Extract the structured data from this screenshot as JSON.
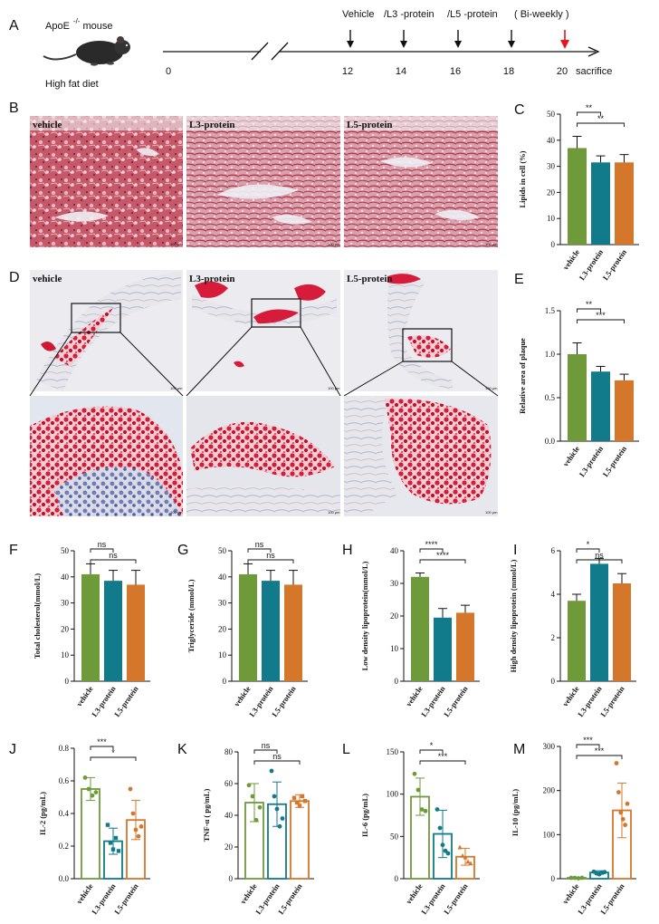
{
  "colors": {
    "vehicle": "#6f9a3a",
    "l3": "#117a8b",
    "l5": "#d4772a",
    "arrow_red": "#e8141c"
  },
  "panel_a": {
    "letter": "A",
    "mouse_label_prefix": "ApoE",
    "mouse_label_sup": "-/-",
    "mouse_label_suffix": "mouse",
    "diet": "High fat diet",
    "legend_vehicle": "Vehicle",
    "legend_l3": "/L3 -protein",
    "legend_l5": "/L5 -protein",
    "legend_schedule": "( Bi-weekly )",
    "ticks": [
      "0",
      "12",
      "14",
      "16",
      "18",
      "20"
    ],
    "end_label": "sacrifice"
  },
  "panel_b": {
    "letter": "B",
    "labels": [
      "vehicle",
      "L3-protein",
      "L5-protein"
    ],
    "scale": "100 μm"
  },
  "panel_d": {
    "letter": "D",
    "labels": [
      "vehicle",
      "L3-protein",
      "L5-protein"
    ],
    "scale": "100 μm"
  },
  "categories": [
    "vehicle",
    "L3-protein",
    "L5-protein"
  ],
  "chart_data": [
    {
      "id": "C",
      "letter": "C",
      "type": "bar",
      "ylabel": "Lipids in cell  (%)",
      "ylim": [
        0,
        50
      ],
      "yticks": [
        "0",
        "10",
        "20",
        "30",
        "40",
        "50"
      ],
      "ytick_values": [
        0,
        10,
        20,
        30,
        40,
        50
      ],
      "categories": [
        "vehicle",
        "L3-protein",
        "L5-protein"
      ],
      "values": [
        37,
        31.5,
        31.5
      ],
      "errors": [
        4.5,
        2.5,
        3
      ],
      "sig": [
        {
          "from": 0,
          "to": 1,
          "label": "**"
        },
        {
          "from": 0,
          "to": 2,
          "label": "**"
        }
      ]
    },
    {
      "id": "E",
      "letter": "E",
      "type": "bar",
      "ylabel": "Relative  area of plaque",
      "ylim": [
        0,
        1.5
      ],
      "yticks": [
        "0.0",
        "0.5",
        "1.0",
        "1.5"
      ],
      "ytick_values": [
        0,
        0.5,
        1.0,
        1.5
      ],
      "categories": [
        "vehicle",
        "L3-protein",
        "L5-protein"
      ],
      "values": [
        1.0,
        0.8,
        0.7
      ],
      "errors": [
        0.13,
        0.06,
        0.07
      ],
      "sig": [
        {
          "from": 0,
          "to": 1,
          "label": "**"
        },
        {
          "from": 0,
          "to": 2,
          "label": "***"
        }
      ]
    },
    {
      "id": "F",
      "letter": "F",
      "type": "bar",
      "ylabel": "Total cholesterol(mmol/L)",
      "ylim": [
        0,
        50
      ],
      "yticks": [
        "0",
        "10",
        "20",
        "30",
        "40",
        "50"
      ],
      "ytick_values": [
        0,
        10,
        20,
        30,
        40,
        50
      ],
      "categories": [
        "vehicle",
        "L3-protein",
        "L5-protein"
      ],
      "values": [
        41,
        38.5,
        37
      ],
      "errors": [
        4,
        4,
        5.5
      ],
      "sig": [
        {
          "from": 0,
          "to": 1,
          "label": "ns"
        },
        {
          "from": 0,
          "to": 2,
          "label": "ns"
        }
      ]
    },
    {
      "id": "G",
      "letter": "G",
      "type": "bar",
      "ylabel": "Triglyceride (mmol/L)",
      "ylim": [
        0,
        50
      ],
      "yticks": [
        "0",
        "10",
        "20",
        "30",
        "40",
        "50"
      ],
      "ytick_values": [
        0,
        10,
        20,
        30,
        40,
        50
      ],
      "categories": [
        "vehicle",
        "L3-protein",
        "L5-protein"
      ],
      "values": [
        41,
        38.5,
        37
      ],
      "errors": [
        4,
        4,
        5.5
      ],
      "sig": [
        {
          "from": 0,
          "to": 1,
          "label": "ns"
        },
        {
          "from": 0,
          "to": 2,
          "label": "ns"
        }
      ]
    },
    {
      "id": "H",
      "letter": "H",
      "type": "bar",
      "ylabel": "Low density lipoprotein(mmol/L)",
      "ylim": [
        0,
        40
      ],
      "yticks": [
        "0",
        "10",
        "20",
        "30",
        "40"
      ],
      "ytick_values": [
        0,
        10,
        20,
        30,
        40
      ],
      "categories": [
        "vehicle",
        "L3-protein",
        "L5-protein"
      ],
      "values": [
        32,
        19.5,
        21
      ],
      "errors": [
        1.2,
        2.8,
        2.3
      ],
      "sig": [
        {
          "from": 0,
          "to": 1,
          "label": "****"
        },
        {
          "from": 0,
          "to": 2,
          "label": "****"
        }
      ]
    },
    {
      "id": "I",
      "letter": "I",
      "type": "bar",
      "ylabel": "High density lipoprotein (mmol/L)",
      "ylim": [
        0,
        6
      ],
      "yticks": [
        "0",
        "2",
        "4",
        "6"
      ],
      "ytick_values": [
        0,
        2,
        4,
        6
      ],
      "categories": [
        "vehicle",
        "L3-protein",
        "L5-protein"
      ],
      "values": [
        3.7,
        5.4,
        4.5
      ],
      "errors": [
        0.3,
        0.25,
        0.45
      ],
      "sig": [
        {
          "from": 0,
          "to": 1,
          "label": "*"
        },
        {
          "from": 0,
          "to": 2,
          "label": "ns"
        }
      ]
    },
    {
      "id": "J",
      "letter": "J",
      "type": "bar",
      "ylabel": "IL-2 (pg/mL)",
      "ylim": [
        0,
        0.8
      ],
      "yticks": [
        "0.0",
        "0.2",
        "0.4",
        "0.6",
        "0.8"
      ],
      "ytick_values": [
        0,
        0.2,
        0.4,
        0.6,
        0.8
      ],
      "categories": [
        "vehicle",
        "L3-protein",
        "L5-protein"
      ],
      "values": [
        0.55,
        0.23,
        0.36
      ],
      "errors": [
        0.07,
        0.08,
        0.12
      ],
      "points": [
        [
          0.62,
          0.55,
          0.51,
          0.53
        ],
        [
          0.33,
          0.22,
          0.18,
          0.25,
          0.17
        ],
        [
          0.55,
          0.4,
          0.3,
          0.26,
          0.32
        ]
      ],
      "point_markers": [
        "circle",
        "square",
        "circle"
      ],
      "sig": [
        {
          "from": 0,
          "to": 1,
          "label": "***"
        },
        {
          "from": 0,
          "to": 2,
          "label": "*"
        }
      ]
    },
    {
      "id": "K",
      "letter": "K",
      "type": "bar",
      "ylabel": "TNF-α ( pg/mL)",
      "ylim": [
        0,
        80
      ],
      "yticks": [
        "0",
        "20",
        "40",
        "60",
        "80"
      ],
      "ytick_values": [
        0,
        20,
        40,
        60,
        80
      ],
      "categories": [
        "vehicle",
        "L3-protein",
        "L5-protein"
      ],
      "values": [
        48,
        47,
        49
      ],
      "errors": [
        12,
        14,
        4
      ],
      "points": [
        [
          59,
          52,
          37,
          45
        ],
        [
          68,
          52,
          44,
          33,
          38
        ],
        [
          51,
          48,
          46,
          52,
          49
        ]
      ],
      "point_markers": [
        "circle",
        "circle",
        "square"
      ],
      "sig": [
        {
          "from": 0,
          "to": 1,
          "label": "ns"
        },
        {
          "from": 0,
          "to": 2,
          "label": "ns"
        }
      ]
    },
    {
      "id": "L",
      "letter": "L",
      "type": "bar",
      "ylabel": "IL-6 (pg/mL)",
      "ylim": [
        0,
        150
      ],
      "yticks": [
        "0",
        "50",
        "100",
        "150"
      ],
      "ytick_values": [
        0,
        50,
        100,
        150
      ],
      "categories": [
        "vehicle",
        "L3-protein",
        "L5-protein"
      ],
      "values": [
        97,
        53,
        26
      ],
      "errors": [
        22,
        28,
        10
      ],
      "points": [
        [
          124,
          105,
          82,
          80
        ],
        [
          82,
          60,
          40,
          33,
          30
        ],
        [
          37,
          27,
          25,
          20,
          18
        ]
      ],
      "point_markers": [
        "circle",
        "circle",
        "triangle"
      ],
      "sig": [
        {
          "from": 0,
          "to": 1,
          "label": "*"
        },
        {
          "from": 0,
          "to": 2,
          "label": "***"
        }
      ]
    },
    {
      "id": "M",
      "letter": "M",
      "type": "bar",
      "ylabel": "IL-10 (pg/mL)",
      "ylim": [
        0,
        300
      ],
      "yticks": [
        "0",
        "100",
        "200",
        "300"
      ],
      "ytick_values": [
        0,
        100,
        200,
        300
      ],
      "categories": [
        "vehicle",
        "L3-protein",
        "L5-protein"
      ],
      "values": [
        2,
        14,
        155
      ],
      "errors": [
        1,
        4,
        62
      ],
      "points": [
        [
          2,
          2,
          1,
          2
        ],
        [
          16,
          12,
          10,
          14,
          15
        ],
        [
          262,
          196,
          150,
          135,
          122,
          170
        ]
      ],
      "point_markers": [
        "circle",
        "circle",
        "circle"
      ],
      "sig": [
        {
          "from": 0,
          "to": 1,
          "label": "***"
        },
        {
          "from": 0,
          "to": 2,
          "label": "***"
        }
      ]
    }
  ]
}
